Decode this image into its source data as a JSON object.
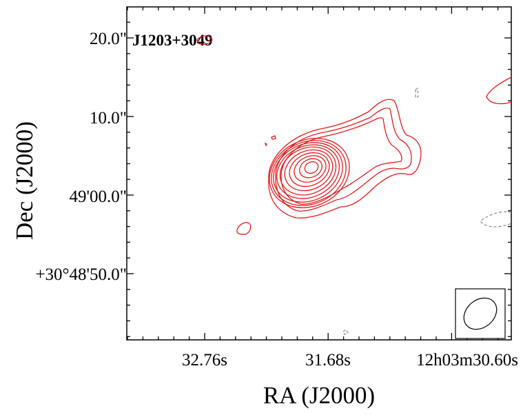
{
  "chart_data": {
    "type": "contour",
    "source_label": "J1203+3049",
    "xlabel": "RA (J2000)",
    "ylabel": "Dec (J2000)",
    "x_tick_labels": [
      "32.76s",
      "31.68s",
      "12h03m30.60s"
    ],
    "y_tick_labels": [
      "20.0\"",
      "10.0\"",
      "49'00.0\"",
      "+30°48'50.0\""
    ],
    "positive_contour_color": "#e41a1c",
    "negative_contour_color": "#909090",
    "negative_contour_style": "dashed",
    "beam_shown": true,
    "grid": false
  }
}
